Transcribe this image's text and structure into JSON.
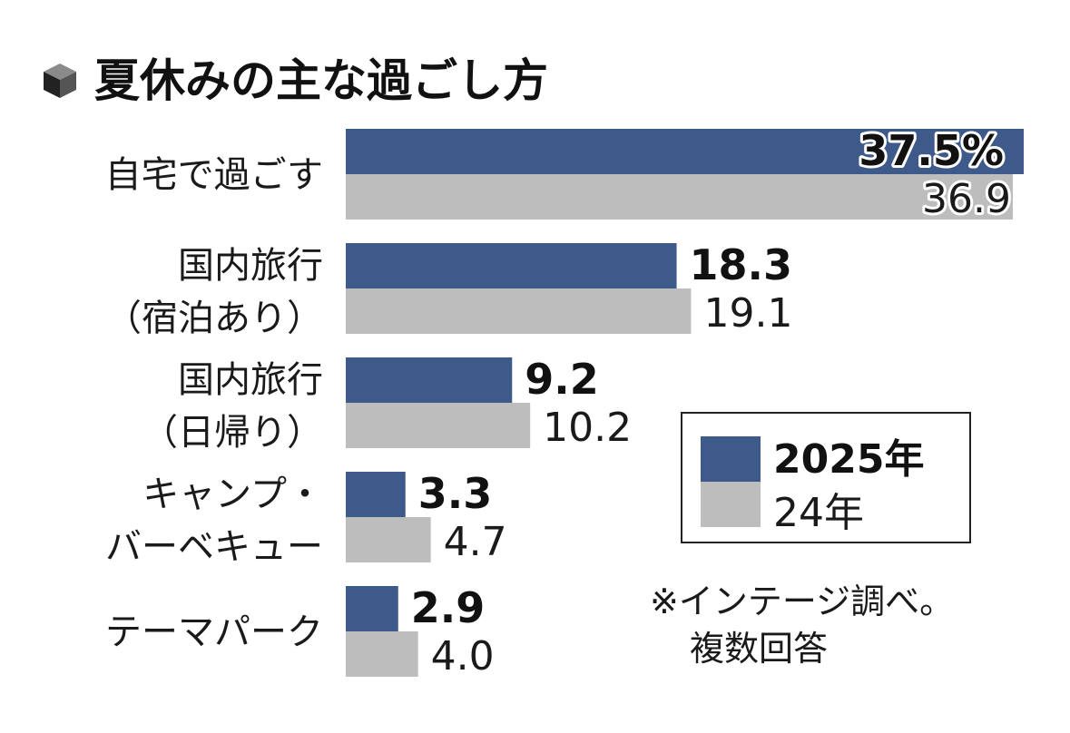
{
  "chart_data": {
    "type": "bar",
    "orientation": "horizontal",
    "title": "夏休みの主な過ごし方",
    "categories": [
      [
        "自宅で過ごす"
      ],
      [
        "国内旅行",
        "（宿泊あり）"
      ],
      [
        "国内旅行",
        "（日帰り）"
      ],
      [
        "キャンプ・",
        "バーベキュー"
      ],
      [
        "テーマパーク"
      ]
    ],
    "series": [
      {
        "name": "2025年",
        "color": "#3d5a8a",
        "values": [
          37.5,
          18.3,
          9.2,
          3.3,
          2.9
        ],
        "labels": [
          "37.5%",
          "18.3",
          "9.2",
          "3.3",
          "2.9"
        ]
      },
      {
        "name": "24年",
        "color": "#bdbdbd",
        "values": [
          36.9,
          19.1,
          10.2,
          4.7,
          4.0
        ],
        "labels": [
          "36.9",
          "19.1",
          "10.2",
          "4.7",
          "4.0"
        ]
      }
    ],
    "xlim": [
      0,
      37.5
    ],
    "grid": false,
    "legend": "right-middle",
    "note": [
      "※インテージ調べ。",
      "複数回答"
    ]
  },
  "title_icon": "cube-icon"
}
